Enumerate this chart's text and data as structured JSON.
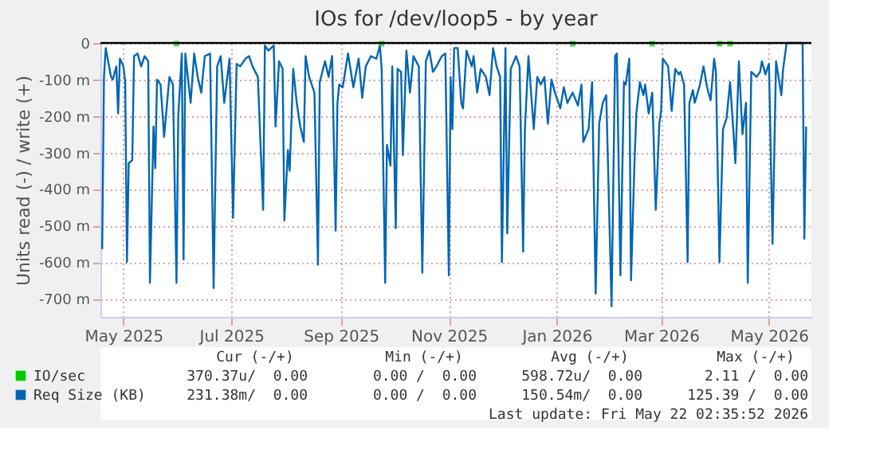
{
  "chart_data": {
    "type": "line",
    "title": "IOs for /dev/loop5 - by year",
    "ylabel": "Units read (-) / write (+)",
    "xlim": [
      "2025-04-18",
      "2026-05-25"
    ],
    "xticks": [
      {
        "value": "2025-05-01",
        "label": "May 2025"
      },
      {
        "value": "2025-07-01",
        "label": "Jul 2025"
      },
      {
        "value": "2025-09-01",
        "label": "Sep 2025"
      },
      {
        "value": "2025-11-01",
        "label": "Nov 2025"
      },
      {
        "value": "2026-01-01",
        "label": "Jan 2026"
      },
      {
        "value": "2026-03-01",
        "label": "Mar 2026"
      },
      {
        "value": "2026-05-01",
        "label": "May 2026"
      }
    ],
    "ylim": [
      -750,
      0
    ],
    "yticks": [
      {
        "value": -700,
        "label": "-700 m"
      },
      {
        "value": -600,
        "label": "-600 m"
      },
      {
        "value": -500,
        "label": "-500 m"
      },
      {
        "value": -400,
        "label": "-400 m"
      },
      {
        "value": -300,
        "label": "-300 m"
      },
      {
        "value": -200,
        "label": "-200 m"
      },
      {
        "value": -100,
        "label": "-100 m"
      },
      0
    ],
    "grid": true,
    "legend": "bottom",
    "ref_lines": [
      {
        "axis": "y",
        "value": 0,
        "color": "#000000"
      }
    ],
    "series": [
      {
        "name": "IO/sec",
        "color": "#00cc00",
        "type": "scatter",
        "marker": "square",
        "x": [
          "2025-05-31",
          "2025-09-24",
          "2026-01-10",
          "2026-02-24",
          "2026-04-03",
          "2026-04-09"
        ],
        "values": [
          -2,
          -2,
          -2,
          -2,
          -2,
          -2
        ]
      },
      {
        "name": "Req Size (KB)",
        "color": "#0066b3",
        "x": [
          "2025-04-19",
          "2025-04-20",
          "2025-04-21",
          "2025-04-24",
          "2025-04-25",
          "2025-04-27",
          "2025-04-28",
          "2025-04-29",
          "2025-05-01",
          "2025-05-02",
          "2025-05-03",
          "2025-05-04",
          "2025-05-06",
          "2025-05-07",
          "2025-05-09",
          "2025-05-11",
          "2025-05-13",
          "2025-05-15",
          "2025-05-16",
          "2025-05-18",
          "2025-05-19",
          "2025-05-20",
          "2025-05-22",
          "2025-05-24",
          "2025-05-27",
          "2025-05-29",
          "2025-05-31",
          "2025-06-01",
          "2025-06-03",
          "2025-06-04",
          "2025-06-05",
          "2025-06-08",
          "2025-06-10",
          "2025-06-12",
          "2025-06-14",
          "2025-06-16",
          "2025-06-19",
          "2025-06-21",
          "2025-06-23",
          "2025-06-25",
          "2025-06-27",
          "2025-06-30",
          "2025-07-02",
          "2025-07-04",
          "2025-07-06",
          "2025-07-09",
          "2025-07-11",
          "2025-07-13",
          "2025-07-16",
          "2025-07-19",
          "2025-07-20",
          "2025-07-22",
          "2025-07-25",
          "2025-07-26",
          "2025-07-28",
          "2025-07-30",
          "2025-07-31",
          "2025-08-02",
          "2025-08-03",
          "2025-08-05",
          "2025-08-07",
          "2025-08-09",
          "2025-08-11",
          "2025-08-12",
          "2025-08-14",
          "2025-08-17",
          "2025-08-19",
          "2025-08-20",
          "2025-08-23",
          "2025-08-25",
          "2025-08-27",
          "2025-08-29",
          "2025-08-30",
          "2025-08-31",
          "2025-09-02",
          "2025-09-05",
          "2025-09-08",
          "2025-09-11",
          "2025-09-13",
          "2025-09-15",
          "2025-09-18",
          "2025-09-21",
          "2025-09-23",
          "2025-09-24",
          "2025-09-26",
          "2025-09-27",
          "2025-09-29",
          "2025-09-30",
          "2025-10-02",
          "2025-10-03",
          "2025-10-05",
          "2025-10-06",
          "2025-10-08",
          "2025-10-10",
          "2025-10-12",
          "2025-10-15",
          "2025-10-17",
          "2025-10-19",
          "2025-10-21",
          "2025-10-23",
          "2025-10-25",
          "2025-10-28",
          "2025-10-30",
          "2025-11-01",
          "2025-11-02",
          "2025-11-03",
          "2025-11-04",
          "2025-11-06",
          "2025-11-08",
          "2025-11-09",
          "2025-11-11",
          "2025-11-14",
          "2025-11-15",
          "2025-11-17",
          "2025-11-19",
          "2025-11-22",
          "2025-11-24",
          "2025-11-26",
          "2025-11-28",
          "2025-11-30",
          "2025-12-01",
          "2025-12-03",
          "2025-12-04",
          "2025-12-06",
          "2025-12-09",
          "2025-12-11",
          "2025-12-13",
          "2025-12-14",
          "2025-12-16",
          "2025-12-19",
          "2025-12-21",
          "2025-12-23",
          "2025-12-25",
          "2025-12-27",
          "2025-12-29",
          "2025-12-31",
          "2026-01-03",
          "2026-01-05",
          "2026-01-07",
          "2026-01-10",
          "2026-01-13",
          "2026-01-15",
          "2026-01-16",
          "2026-01-19",
          "2026-01-21",
          "2026-01-23",
          "2026-01-25",
          "2026-01-27",
          "2026-01-29",
          "2026-02-01",
          "2026-02-03",
          "2026-02-04",
          "2026-02-06",
          "2026-02-08",
          "2026-02-09",
          "2026-02-11",
          "2026-02-12",
          "2026-02-14",
          "2026-02-15",
          "2026-02-17",
          "2026-02-19",
          "2026-02-20",
          "2026-02-22",
          "2026-02-24",
          "2026-02-26",
          "2026-02-28",
          "2026-03-01",
          "2026-03-02",
          "2026-03-05",
          "2026-03-07",
          "2026-03-09",
          "2026-03-11",
          "2026-03-12",
          "2026-03-14",
          "2026-03-16",
          "2026-03-17",
          "2026-03-19",
          "2026-03-20",
          "2026-03-23",
          "2026-03-25",
          "2026-03-27",
          "2026-03-29",
          "2026-03-31",
          "2026-04-01",
          "2026-04-03",
          "2026-04-05",
          "2026-04-07",
          "2026-04-09",
          "2026-04-11",
          "2026-04-12",
          "2026-04-14",
          "2026-04-16",
          "2026-04-18",
          "2026-04-19",
          "2026-04-21",
          "2026-04-24",
          "2026-04-26",
          "2026-04-27",
          "2026-04-29",
          "2026-05-01",
          "2026-05-03",
          "2026-05-05",
          "2026-05-08",
          "2026-05-09",
          "2026-05-11",
          "2026-05-20",
          "2026-05-21",
          "2026-05-22"
        ],
        "values": [
          -564,
          -93,
          -14,
          -93,
          -100,
          -64,
          -193,
          -43,
          -64,
          -107,
          -600,
          -329,
          -321,
          -36,
          -29,
          -64,
          -36,
          -50,
          -657,
          -229,
          -343,
          -100,
          -114,
          -257,
          -93,
          -114,
          -657,
          -200,
          -29,
          -593,
          -29,
          -164,
          -29,
          -93,
          -136,
          -36,
          -29,
          -671,
          -64,
          -36,
          -164,
          -43,
          -479,
          -57,
          -64,
          -43,
          -36,
          -64,
          -93,
          -457,
          -7,
          -21,
          -7,
          -229,
          -50,
          -71,
          -486,
          -293,
          -350,
          -71,
          -164,
          -229,
          -271,
          -36,
          -93,
          -136,
          -607,
          -107,
          -50,
          -93,
          -36,
          -514,
          -164,
          -114,
          -121,
          -29,
          -121,
          -43,
          -150,
          -64,
          -36,
          -43,
          -7,
          -71,
          -657,
          -279,
          -336,
          -64,
          -507,
          -71,
          -79,
          -307,
          -21,
          -136,
          -36,
          -64,
          -629,
          -50,
          -21,
          -79,
          -64,
          -36,
          -29,
          -636,
          -93,
          -236,
          -14,
          -14,
          -164,
          -179,
          -21,
          -64,
          -36,
          -136,
          -71,
          -93,
          -143,
          -14,
          -64,
          -93,
          -600,
          -14,
          -521,
          -71,
          -36,
          -64,
          -571,
          -236,
          -36,
          -236,
          -93,
          -114,
          -93,
          -221,
          -100,
          -136,
          -179,
          -121,
          -164,
          -136,
          -171,
          -114,
          -271,
          -236,
          -107,
          -686,
          -221,
          -164,
          -143,
          -721,
          -36,
          -29,
          -636,
          -107,
          -114,
          -43,
          -650,
          -321,
          -193,
          -107,
          -143,
          -114,
          -193,
          -136,
          -457,
          -221,
          -186,
          -43,
          -64,
          -186,
          -71,
          -86,
          -79,
          -114,
          -600,
          -164,
          -129,
          -164,
          -114,
          -64,
          -121,
          -157,
          -43,
          -79,
          -600,
          -236,
          -207,
          -107,
          -250,
          -329,
          -50,
          -250,
          -164,
          -657,
          -79,
          -93,
          -79,
          -50,
          -86,
          -57,
          -550,
          -50,
          -143,
          -71,
          0,
          0,
          -536,
          -229
        ]
      }
    ],
    "annotations": [
      "Cur (-/+)",
      "Min (-/+)",
      "Avg (-/+)",
      "Max (-/+)",
      "370.37u/  0.00",
      "0.00 /  0.00",
      "598.72u/  0.00",
      "2.11 /  0.00",
      "231.38m/  0.00",
      "0.00 /  0.00",
      "150.54m/  0.00",
      "125.39 /  0.00",
      "Last update: Fri May 22 02:35:52 2026"
    ]
  }
}
